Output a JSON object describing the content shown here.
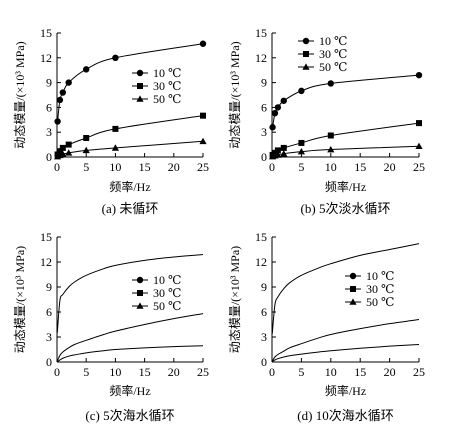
{
  "chart_data": [
    {
      "type": "line",
      "caption": "(a) 未循环",
      "xlabel": "频率/Hz",
      "ylabel": "动态模量/(×10³ MPa)",
      "xlim": [
        0,
        25
      ],
      "ylim": [
        0,
        15
      ],
      "xticks": [
        "0",
        "5",
        "10",
        "15",
        "20",
        "25"
      ],
      "yticks": [
        "0",
        "3",
        "6",
        "9",
        "12",
        "15"
      ],
      "legend_position": "right-middle",
      "markers_shown": true,
      "x": [
        0.1,
        0.5,
        1,
        2,
        5,
        10,
        25
      ],
      "series": [
        {
          "name": "10 ℃",
          "marker": "circle",
          "values": [
            4.3,
            6.9,
            7.8,
            9.0,
            10.6,
            12.0,
            13.7
          ]
        },
        {
          "name": "30 ℃",
          "marker": "square",
          "values": [
            0.3,
            0.7,
            1.1,
            1.5,
            2.3,
            3.4,
            5.0
          ]
        },
        {
          "name": "50 ℃",
          "marker": "triangle",
          "values": [
            0.05,
            0.2,
            0.35,
            0.5,
            0.8,
            1.1,
            1.9
          ]
        }
      ]
    },
    {
      "type": "line",
      "caption": "(b) 5次淡水循环",
      "xlabel": "频率/Hz",
      "ylabel": "动态模量/(×10³ MPa)",
      "xlim": [
        0,
        25
      ],
      "ylim": [
        0,
        15
      ],
      "xticks": [
        "0",
        "5",
        "10",
        "15",
        "20",
        "25"
      ],
      "yticks": [
        "0",
        "3",
        "6",
        "9",
        "12",
        "15"
      ],
      "legend_position": "top-right",
      "markers_shown": true,
      "x": [
        0.1,
        0.5,
        1,
        2,
        5,
        10,
        25
      ],
      "series": [
        {
          "name": "10 ℃",
          "marker": "circle",
          "values": [
            3.6,
            5.3,
            6.0,
            6.8,
            8.0,
            8.9,
            9.9
          ]
        },
        {
          "name": "30 ℃",
          "marker": "square",
          "values": [
            0.25,
            0.5,
            0.8,
            1.1,
            1.7,
            2.6,
            4.1
          ]
        },
        {
          "name": "50 ℃",
          "marker": "triangle",
          "values": [
            0.05,
            0.15,
            0.25,
            0.4,
            0.65,
            0.9,
            1.3
          ]
        }
      ]
    },
    {
      "type": "line",
      "caption": "(c) 5次海水循环",
      "xlabel": "频率/Hz",
      "ylabel": "动态模量/(×10³ MPa)",
      "xlim": [
        0,
        25
      ],
      "ylim": [
        0,
        15
      ],
      "xticks": [
        "0",
        "5",
        "10",
        "15",
        "20",
        "25"
      ],
      "yticks": [
        "0",
        "3",
        "6",
        "9",
        "12",
        "15"
      ],
      "legend_position": "top-center",
      "markers_shown": false,
      "x": [
        0.05,
        0.5,
        1,
        2,
        3,
        5,
        8,
        10,
        15,
        20,
        25
      ],
      "series": [
        {
          "name": "10 ℃",
          "marker": "circle",
          "values": [
            3.5,
            7.4,
            8.1,
            9.0,
            9.6,
            10.4,
            11.2,
            11.6,
            12.2,
            12.6,
            12.9
          ]
        },
        {
          "name": "30 ℃",
          "marker": "square",
          "values": [
            0.1,
            0.8,
            1.2,
            1.7,
            2.1,
            2.6,
            3.3,
            3.7,
            4.5,
            5.2,
            5.8
          ]
        },
        {
          "name": "50 ℃",
          "marker": "triangle",
          "values": [
            0.02,
            0.25,
            0.45,
            0.7,
            0.85,
            1.1,
            1.35,
            1.5,
            1.7,
            1.85,
            1.95
          ]
        }
      ]
    },
    {
      "type": "line",
      "caption": "(d) 10次海水循环",
      "xlabel": "频率/Hz",
      "ylabel": "动态模量/(×10³ MPa)",
      "xlim": [
        0,
        25
      ],
      "ylim": [
        0,
        15
      ],
      "xticks": [
        "0",
        "5",
        "10",
        "15",
        "20",
        "25"
      ],
      "yticks": [
        "0",
        "3",
        "6",
        "9",
        "12",
        "15"
      ],
      "legend_position": "top-center",
      "markers_shown": false,
      "x": [
        0.05,
        0.5,
        1,
        2,
        3,
        5,
        8,
        10,
        15,
        20,
        25
      ],
      "series": [
        {
          "name": "10 ℃",
          "marker": "circle",
          "values": [
            3.4,
            6.9,
            7.8,
            8.8,
            9.5,
            10.4,
            11.3,
            11.8,
            12.8,
            13.5,
            14.2
          ]
        },
        {
          "name": "30 ℃",
          "marker": "square",
          "values": [
            0.1,
            0.6,
            0.9,
            1.3,
            1.7,
            2.2,
            2.9,
            3.3,
            4.0,
            4.6,
            5.1
          ]
        },
        {
          "name": "50 ℃",
          "marker": "triangle",
          "values": [
            0.02,
            0.25,
            0.4,
            0.6,
            0.75,
            0.95,
            1.2,
            1.35,
            1.65,
            1.9,
            2.1
          ]
        }
      ]
    }
  ]
}
